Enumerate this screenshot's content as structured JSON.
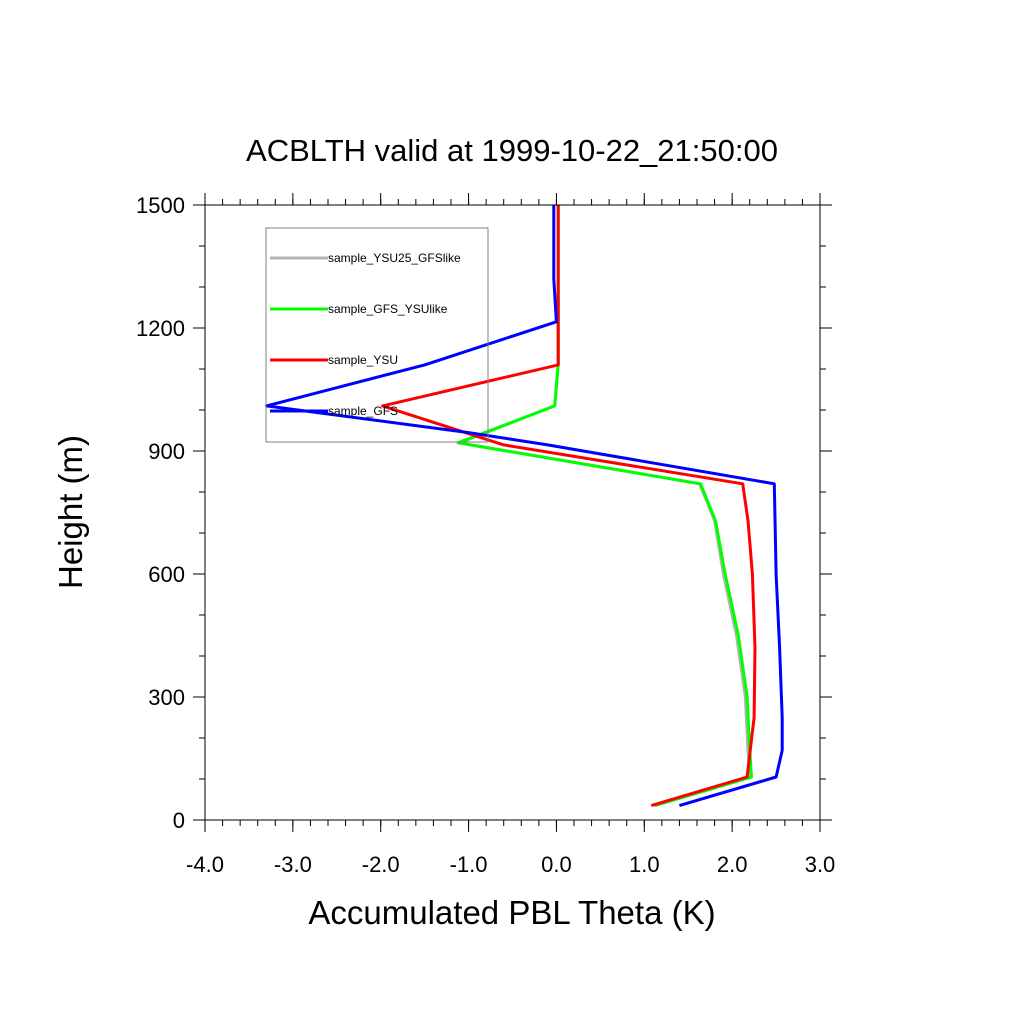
{
  "chart_data": {
    "type": "line",
    "title": "ACBLTH valid at 1999-10-22_21:50:00",
    "xlabel": "Accumulated PBL Theta (K)",
    "ylabel": "Height (m)",
    "xlim": [
      -4.0,
      3.0
    ],
    "ylim": [
      0,
      1500
    ],
    "xticks": [
      "-4.0",
      "-3.0",
      "-2.0",
      "-1.0",
      "0.0",
      "1.0",
      "2.0",
      "3.0"
    ],
    "yticks": [
      "0",
      "300",
      "600",
      "900",
      "1200",
      "1500"
    ],
    "legend": "top-left",
    "grid": false,
    "series": [
      {
        "name": "sample_YSU25_GFSlike",
        "color": "#b4b4b4",
        "points": [
          [
            1.12,
            35
          ],
          [
            2.2,
            105
          ],
          [
            2.18,
            170
          ],
          [
            2.15,
            300
          ],
          [
            2.05,
            450
          ],
          [
            1.9,
            600
          ],
          [
            1.8,
            730
          ],
          [
            1.63,
            820
          ],
          [
            -1.1,
            920
          ],
          [
            -0.02,
            1010
          ],
          [
            0.02,
            1110
          ],
          [
            0.02,
            1220
          ],
          [
            0.02,
            1320
          ],
          [
            0.02,
            1500
          ]
        ]
      },
      {
        "name": "sample_GFS_YSUlike",
        "color": "#00ff00",
        "points": [
          [
            1.12,
            35
          ],
          [
            2.22,
            105
          ],
          [
            2.2,
            170
          ],
          [
            2.17,
            300
          ],
          [
            2.07,
            450
          ],
          [
            1.92,
            600
          ],
          [
            1.81,
            730
          ],
          [
            1.64,
            820
          ],
          [
            -1.12,
            920
          ],
          [
            -0.02,
            1010
          ],
          [
            0.02,
            1110
          ],
          [
            0.02,
            1220
          ],
          [
            0.02,
            1320
          ],
          [
            0.02,
            1500
          ]
        ]
      },
      {
        "name": "sample_YSU",
        "color": "#ff0000",
        "points": [
          [
            1.08,
            35
          ],
          [
            2.17,
            105
          ],
          [
            2.25,
            250
          ],
          [
            2.26,
            420
          ],
          [
            2.23,
            600
          ],
          [
            2.18,
            730
          ],
          [
            2.12,
            820
          ],
          [
            -0.6,
            915
          ],
          [
            -1.98,
            1010
          ],
          [
            0.02,
            1110
          ],
          [
            0.02,
            1220
          ],
          [
            0.02,
            1320
          ],
          [
            0.02,
            1500
          ]
        ]
      },
      {
        "name": "sample_GFS",
        "color": "#0000ff",
        "points": [
          [
            1.4,
            35
          ],
          [
            2.5,
            105
          ],
          [
            2.57,
            170
          ],
          [
            2.57,
            250
          ],
          [
            2.54,
            420
          ],
          [
            2.5,
            600
          ],
          [
            2.48,
            820
          ],
          [
            -0.1,
            915
          ],
          [
            -1.0,
            945
          ],
          [
            -3.3,
            1010
          ],
          [
            -1.5,
            1110
          ],
          [
            0.0,
            1215
          ],
          [
            -0.03,
            1320
          ],
          [
            -0.03,
            1500
          ]
        ]
      }
    ]
  }
}
